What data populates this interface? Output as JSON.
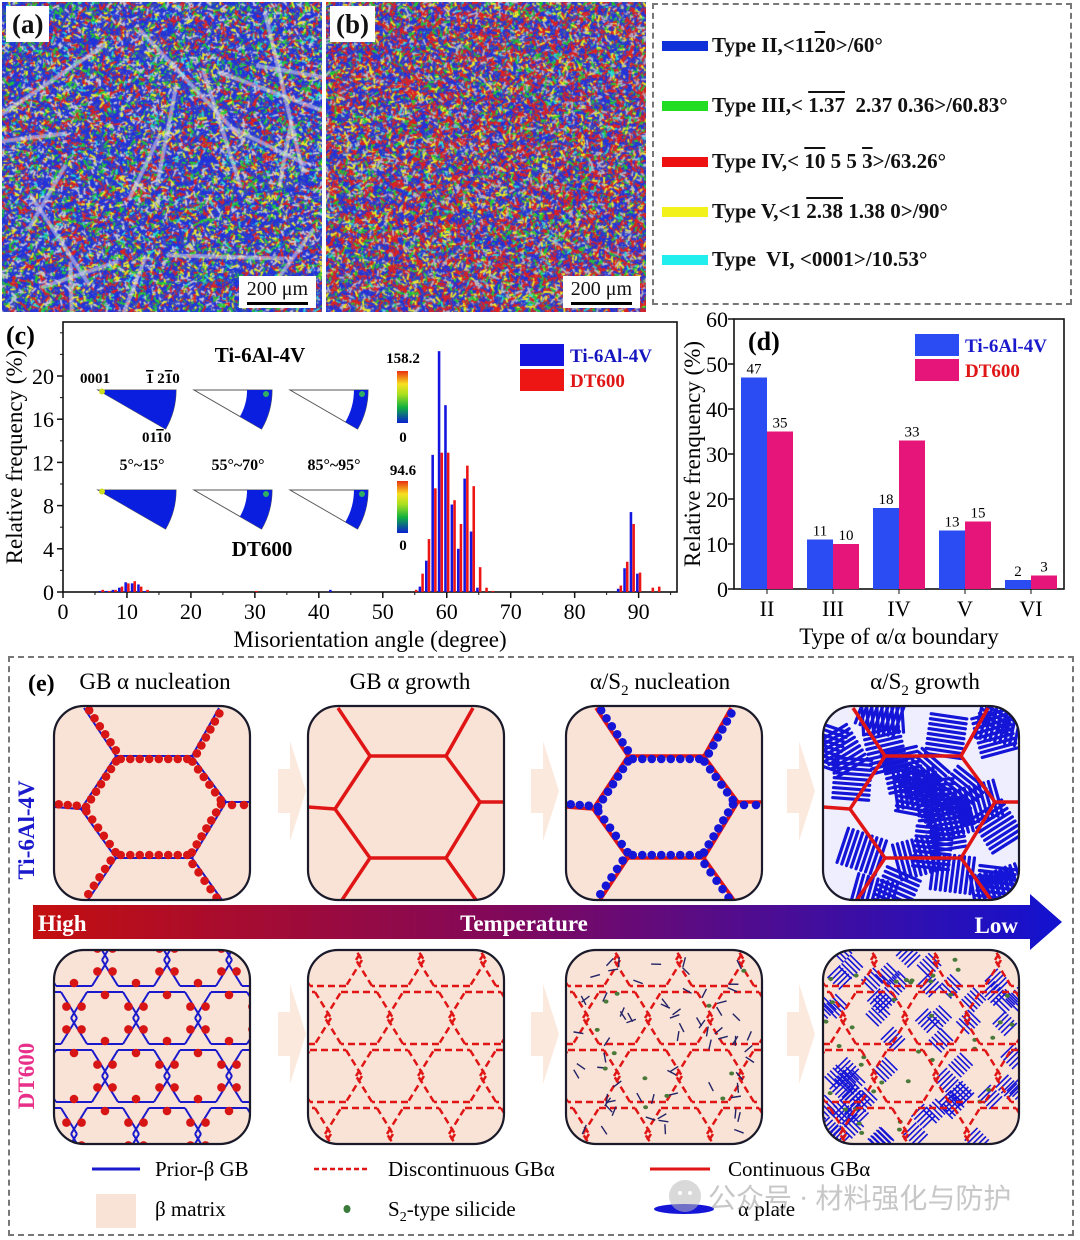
{
  "panel_a": {
    "tag": "(a)",
    "scale_bar": "200 μm"
  },
  "panel_b": {
    "tag": "(b)",
    "scale_bar": "200 μm"
  },
  "boundary_legend": {
    "items": [
      {
        "color": "#1030d8",
        "type": "Type II, ",
        "axis_pre": "<11",
        "axis_bar": "2",
        "axis_post": "0>/60°"
      },
      {
        "color": "#22dd22",
        "type": "Type III, ",
        "axis_pre": "< ",
        "axis_bar": "1.37",
        "axis_post": "  2.37 0.36>/60.83°"
      },
      {
        "color": "#ee1111",
        "type": "Type IV, ",
        "axis_pre": "< ",
        "axis_bar": "10",
        "axis_post": " 5 5 ",
        "axis_bar2": "3",
        "axis_post2": ">/63.26°"
      },
      {
        "color": "#f2f21a",
        "type": "Type V, ",
        "axis_pre": "<1 ",
        "axis_bar": "2.38",
        "axis_post": " 1.38 0>/90°"
      },
      {
        "color": "#22eeee",
        "type": "Type  VI, ",
        "axis_pre": "<0001>/10.53°",
        "axis_bar": "",
        "axis_post": ""
      }
    ]
  },
  "panel_c": {
    "tag": "(c)",
    "ipf": {
      "top_title": "Ti-6Al-4V",
      "bottom_title": "DT600",
      "corner_0001": "0001",
      "corner_1210": "1 21 0",
      "corner_0110": "01 1 0",
      "ranges": [
        "5°~15°",
        "55°~70°",
        "85°~95°"
      ],
      "colorbar_top": {
        "max": "158.2",
        "min": "0"
      },
      "colorbar_bottom": {
        "max": "94.6",
        "min": "0"
      }
    }
  },
  "panel_d": {
    "tag": "(d)"
  },
  "chart_data": [
    {
      "type": "bar",
      "title": "",
      "xlabel": "Misorientation angle (degree)",
      "ylabel": "Relative frequency (%)",
      "xlim": [
        0,
        96
      ],
      "ylim": [
        0,
        25
      ],
      "xticks": [
        0,
        10,
        20,
        30,
        40,
        50,
        60,
        70,
        80,
        90
      ],
      "yticks": [
        0,
        4,
        8,
        12,
        16,
        20
      ],
      "legend": "top-right",
      "series": [
        {
          "name": "Ti-6Al-4V",
          "color": "#1515e0",
          "x": [
            6,
            7,
            8,
            9,
            10,
            11,
            12,
            13,
            42,
            56,
            57,
            58,
            59,
            60,
            61,
            62,
            63,
            64,
            65,
            87,
            88,
            89,
            90
          ],
          "values": [
            0.1,
            0.1,
            0.2,
            0.4,
            0.9,
            0.8,
            0.7,
            0.1,
            0.2,
            0.5,
            2.9,
            12.7,
            22.3,
            17.3,
            8.1,
            4.0,
            10.5,
            5.6,
            0.4,
            0.3,
            2.2,
            7.4,
            1.7
          ]
        },
        {
          "name": "DT600",
          "color": "#ee1515",
          "x": [
            6,
            7,
            8,
            9,
            10,
            11,
            12,
            13,
            30,
            55,
            56,
            57,
            58,
            59,
            60,
            61,
            62,
            63,
            64,
            65,
            66,
            67,
            87,
            88,
            89,
            90,
            92,
            93
          ],
          "values": [
            0.2,
            0.1,
            0.2,
            0.5,
            0.8,
            1.0,
            0.5,
            0.2,
            0.1,
            0.2,
            1.7,
            4.9,
            9.6,
            12.9,
            12.9,
            8.5,
            6.3,
            11.7,
            9.8,
            2.3,
            0.4,
            0.1,
            0.6,
            2.8,
            6.3,
            1.8,
            0.4,
            0.5
          ]
        }
      ]
    },
    {
      "type": "bar",
      "title": "",
      "xlabel": "Type of α/α boundary",
      "ylabel": "Relative frenquency (%)",
      "ylim": [
        0,
        60
      ],
      "yticks": [
        0,
        10,
        20,
        30,
        40,
        50,
        60
      ],
      "legend": "top-right",
      "categories": [
        "II",
        "III",
        "IV",
        "V",
        "VI"
      ],
      "series": [
        {
          "name": "Ti-6Al-4V",
          "color": "#2b4cf2",
          "label_color": "#1a1acc",
          "values": [
            47,
            11,
            18,
            13,
            2
          ]
        },
        {
          "name": "DT600",
          "color": "#e5157a",
          "label_color": "#e01515",
          "values": [
            35,
            10,
            33,
            15,
            3
          ]
        }
      ]
    }
  ],
  "panel_e": {
    "tag": "(e)",
    "stages": [
      "GB α nucleation",
      "GB α growth",
      "α/S",
      "α/S"
    ],
    "stage_subs": [
      "",
      "",
      "2",
      "2"
    ],
    "stage_suffix": [
      "",
      "",
      " nucleation",
      " growth"
    ],
    "row_labels": {
      "top": "Ti-6Al-4V",
      "bottom": "DT600"
    },
    "row_label_colors": {
      "top": "#1a1acc",
      "bottom": "#e8308a"
    },
    "temperature_arrow": {
      "high": "High",
      "mid": "Temperature",
      "low": "Low",
      "from_color": "#c40f0f",
      "to_color": "#1212d0"
    },
    "legend": {
      "prior_beta_gb": "Prior-β GB",
      "discontinuous": "Discontinuous GBα",
      "continuous": "Continuous GBα",
      "beta_matrix": "β matrix",
      "silicide_pre": "S",
      "silicide_sub": "2",
      "silicide_post": "-type silicide",
      "alpha_plate": "α plate"
    }
  },
  "watermark": "公众号 · 材料强化与防护"
}
